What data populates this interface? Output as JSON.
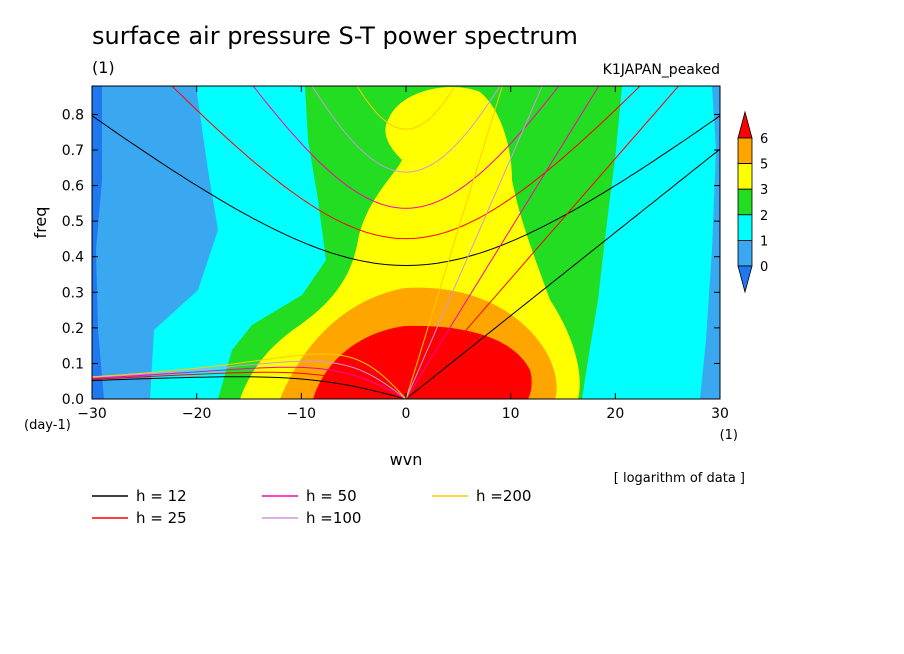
{
  "chart_data": {
    "type": "heatmap",
    "title": "surface air pressure S-T power spectrum",
    "subtitle_left": "(1)",
    "subtitle_right": "K1JAPAN_peaked",
    "xlabel": "wvn",
    "ylabel": "freq",
    "x_unit": "(1)",
    "y_unit": "(day-1)",
    "xlim": [
      -30,
      30
    ],
    "ylim": [
      0,
      0.88
    ],
    "xticks": [
      -30,
      -20,
      -10,
      0,
      10,
      20,
      30
    ],
    "yticks": [
      0.0,
      0.1,
      0.2,
      0.3,
      0.4,
      0.5,
      0.6,
      0.7,
      0.8
    ],
    "note": "[ logarithm of data ]",
    "colorbar": {
      "levels": [
        0,
        1,
        2,
        3,
        5,
        6
      ],
      "colors": [
        "#1f78f0",
        "#3aa8f0",
        "#00ffff",
        "#22dd22",
        "#ffff00",
        "#ffa500",
        "#ff0000"
      ]
    },
    "dispersion_curves": [
      {
        "label": "h = 12",
        "h": 12,
        "color": "#000000"
      },
      {
        "label": "h = 25",
        "h": 25,
        "color": "#ff0000"
      },
      {
        "label": "h = 50",
        "h": 50,
        "color": "#ff00aa"
      },
      {
        "label": "h =100",
        "h": 100,
        "color": "#cc99dd"
      },
      {
        "label": "h =200",
        "h": 200,
        "color": "#ffcc00"
      }
    ]
  }
}
